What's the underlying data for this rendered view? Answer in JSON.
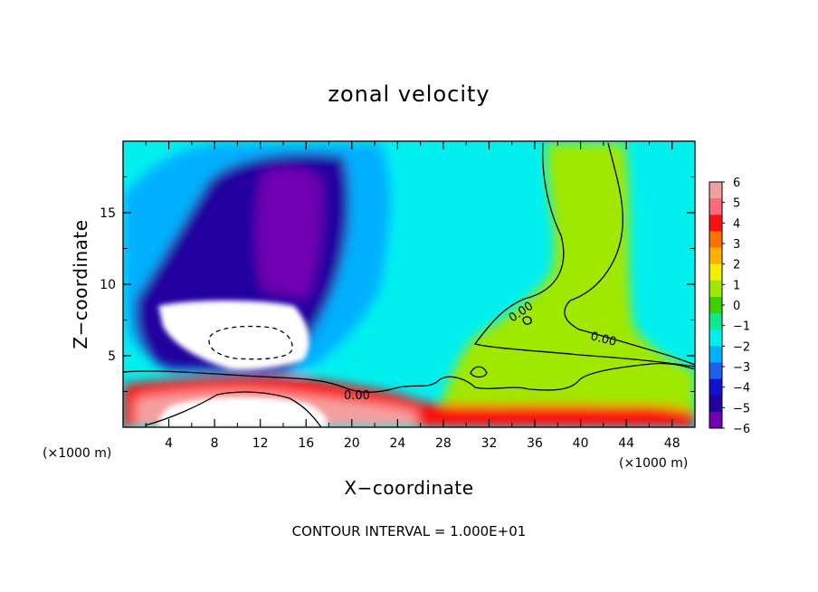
{
  "chart_data": {
    "type": "heatmap",
    "title": "zonal velocity",
    "xlabel": "X−coordinate",
    "ylabel": "Z−coordinate",
    "x_unit_left": "(×1000 m)",
    "x_unit_right": "(×1000 m)",
    "footer": "CONTOUR INTERVAL = 1.000E+01",
    "xlim": [
      0,
      50
    ],
    "ylim": [
      0,
      20
    ],
    "x_ticks": [
      4,
      8,
      12,
      16,
      20,
      24,
      28,
      32,
      36,
      40,
      44,
      48
    ],
    "y_ticks": [
      5,
      10,
      15
    ],
    "contour_labels": [
      "0.00",
      "0.00",
      "0.00"
    ],
    "colorbar": {
      "labels": [
        "6",
        "5",
        "4",
        "3",
        "2",
        "1",
        "0",
        "−1",
        "−2",
        "−3",
        "−4",
        "−5",
        "−6"
      ],
      "values": [
        6,
        5,
        4,
        3,
        2,
        1,
        0,
        -1,
        -2,
        -3,
        -4,
        -5,
        -6
      ],
      "colors": [
        "#f4a0a0",
        "#ff6a7a",
        "#ff1010",
        "#ff7000",
        "#ffb000",
        "#f0f000",
        "#a0e800",
        "#40d000",
        "#10e890",
        "#00f0f0",
        "#00b0ff",
        "#2060f0",
        "#1010d0",
        "#2000a0",
        "#7000b0"
      ]
    },
    "field_regions": [
      {
        "desc": "background",
        "value": -1.4
      },
      {
        "desc": "upper-left weak easterly band",
        "value": -2.2
      },
      {
        "desc": "strong easterly core",
        "value": -4.4
      },
      {
        "desc": "easterly core maximum",
        "value": -5.6
      },
      {
        "desc": "westerly tongue x 31-44",
        "value": 0.4
      },
      {
        "desc": "westerly column x 37-46 above z 5",
        "value": 0.6
      },
      {
        "desc": "low-level westerly jet",
        "value": 4.0
      },
      {
        "desc": "low-level jet maximum",
        "value": 5.6
      },
      {
        "desc": "out-of-range easterly",
        "value": -7
      },
      {
        "desc": "out-of-range westerly",
        "value": 7
      }
    ]
  }
}
